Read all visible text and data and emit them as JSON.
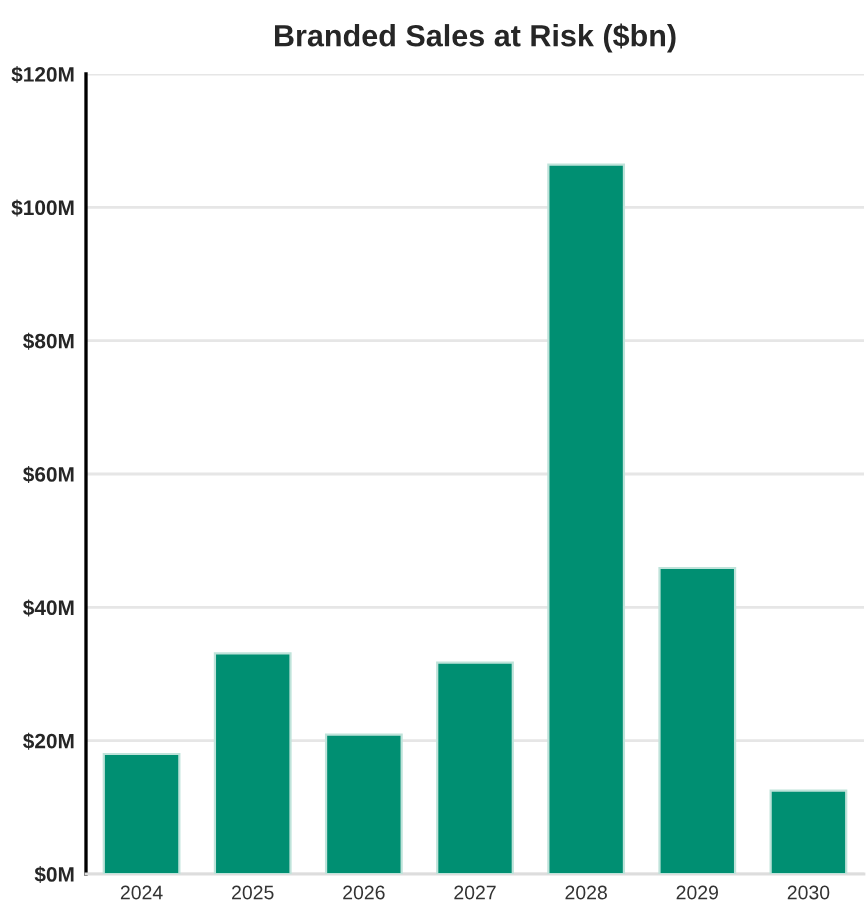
{
  "chart_data": {
    "type": "bar",
    "title": "Branded Sales at Risk ($bn)",
    "categories": [
      "2024",
      "2025",
      "2026",
      "2027",
      "2028",
      "2029",
      "2030"
    ],
    "values": [
      18.0,
      33.1,
      20.9,
      31.7,
      106.4,
      45.9,
      12.5
    ],
    "color": "#008f72",
    "ylim": [
      0,
      120
    ],
    "yticks": [
      {
        "value": 0,
        "label": "$0M"
      },
      {
        "value": 20,
        "label": "$20M"
      },
      {
        "value": 40,
        "label": "$40M"
      },
      {
        "value": 60,
        "label": "$60M"
      },
      {
        "value": 80,
        "label": "$80M"
      },
      {
        "value": 100,
        "label": "$100M"
      },
      {
        "value": 120,
        "label": "$120M"
      }
    ],
    "grid": "y"
  }
}
